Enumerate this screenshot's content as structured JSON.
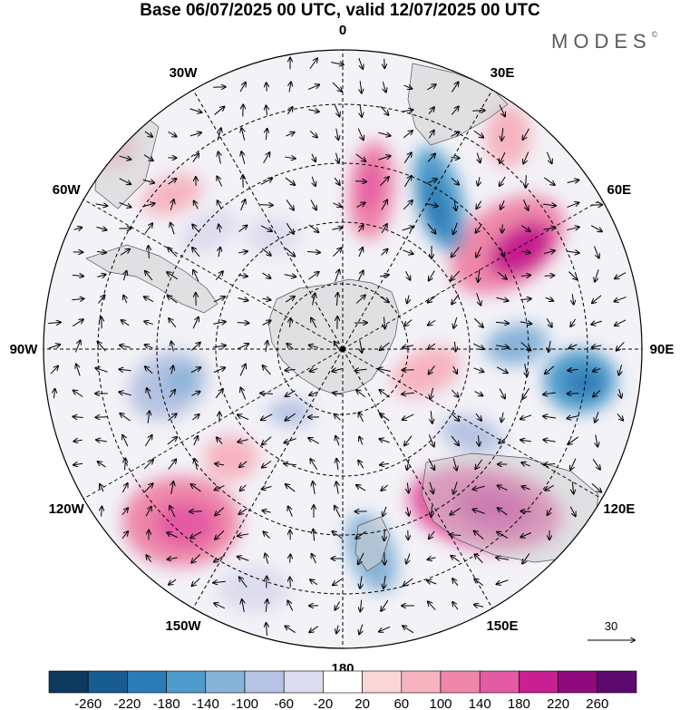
{
  "title": "Base 06/07/2025 00 UTC, valid 12/07/2025 00 UTC",
  "brand": "MODES",
  "brand_mark": "©",
  "map": {
    "projection": "south-polar-stereographic",
    "longitude_labels": [
      {
        "text": "0",
        "lon": 0
      },
      {
        "text": "30E",
        "lon": 30
      },
      {
        "text": "60E",
        "lon": 60
      },
      {
        "text": "90E",
        "lon": 90
      },
      {
        "text": "120E",
        "lon": 120
      },
      {
        "text": "150E",
        "lon": 150
      },
      {
        "text": "180",
        "lon": 180
      },
      {
        "text": "150W",
        "lon": -150
      },
      {
        "text": "120W",
        "lon": -120
      },
      {
        "text": "90W",
        "lon": -90
      },
      {
        "text": "60W",
        "lon": -60
      },
      {
        "text": "30W",
        "lon": -30
      }
    ],
    "wind_reference": {
      "value": "30"
    }
  },
  "colorbar": {
    "ticks": [
      "-260",
      "-220",
      "-180",
      "-140",
      "-100",
      "-60",
      "-20",
      "20",
      "60",
      "100",
      "140",
      "180",
      "220",
      "260"
    ],
    "colors": [
      "#0d3a5e",
      "#175d91",
      "#2b7cb6",
      "#4f9bcb",
      "#87b3d8",
      "#b6c3e2",
      "#dcdcee",
      "#ffffff",
      "#f9d7d9",
      "#f5b4bf",
      "#ee87a9",
      "#e45aa3",
      "#c81f91",
      "#900a7e",
      "#5c0a6e"
    ]
  },
  "colors": {
    "land": "#cfcfcf",
    "grid": "#000000",
    "arrow": "#000000"
  }
}
